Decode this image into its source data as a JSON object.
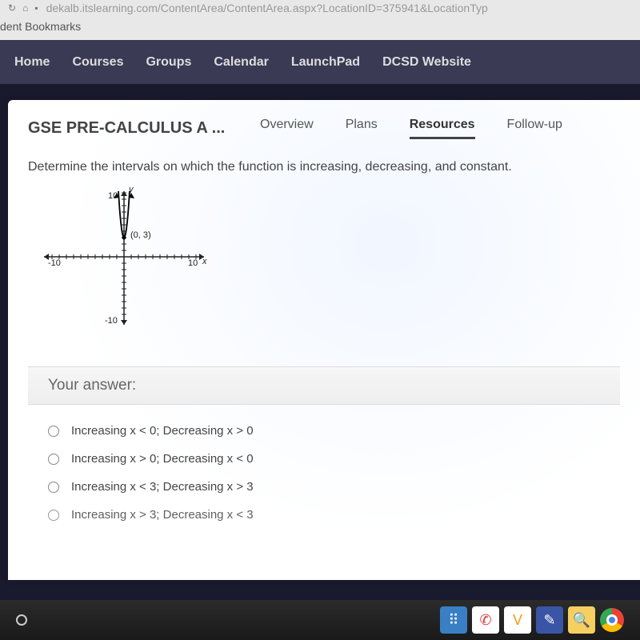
{
  "browser": {
    "url": "dekalb.itslearning.com/ContentArea/ContentArea.aspx?LocationID=375941&LocationTyp",
    "bookmark_label": "dent Bookmarks"
  },
  "nav": {
    "items": [
      "Home",
      "Courses",
      "Groups",
      "Calendar",
      "LaunchPad",
      "DCSD Website"
    ]
  },
  "course": {
    "title": "GSE PRE-CALCULUS A ...",
    "tabs": [
      "Overview",
      "Plans",
      "Resources",
      "Follow-up"
    ],
    "active_tab_index": 2
  },
  "question": {
    "prompt": "Determine the intervals on which the function is increasing, decreasing, and constant.",
    "answer_header": "Your answer:",
    "options": [
      "Increasing x < 0; Decreasing x > 0",
      "Increasing x > 0; Decreasing x < 0",
      "Increasing x < 3; Decreasing x > 3",
      "Increasing x > 3; Decreasing x < 3"
    ]
  },
  "graph": {
    "x_min": -10,
    "x_max": 10,
    "y_min": -10,
    "y_max": 10,
    "tick_step": 1,
    "point_label": "(0, 3)",
    "axis_labels": {
      "x_neg": "-10",
      "x_pos": "10",
      "y_pos": "10",
      "y_neg": "-10",
      "x_axis": "x",
      "y_axis": "y"
    },
    "vertex": [
      0,
      3
    ],
    "curve_type": "upward-parabola-steep",
    "axis_color": "#222",
    "tick_color": "#222",
    "curve_color": "#000",
    "background_color": "#ffffff",
    "line_width": 1.5
  },
  "taskbar": {
    "icons": [
      {
        "name": "dice",
        "bg": "#3a7fc4",
        "glyph": "⠿",
        "color": "#fff"
      },
      {
        "name": "phone",
        "bg": "#ffffff",
        "glyph": "✆",
        "color": "#d33"
      },
      {
        "name": "check",
        "bg": "#ffffff",
        "glyph": "V",
        "color": "#f39c12"
      },
      {
        "name": "note",
        "bg": "#3a55a5",
        "glyph": "✎",
        "color": "#fff"
      },
      {
        "name": "search",
        "bg": "#f5d060",
        "glyph": "🔍",
        "color": "#333"
      },
      {
        "name": "chrome",
        "bg": "radial",
        "glyph": "◉",
        "color": "#fff"
      }
    ]
  }
}
